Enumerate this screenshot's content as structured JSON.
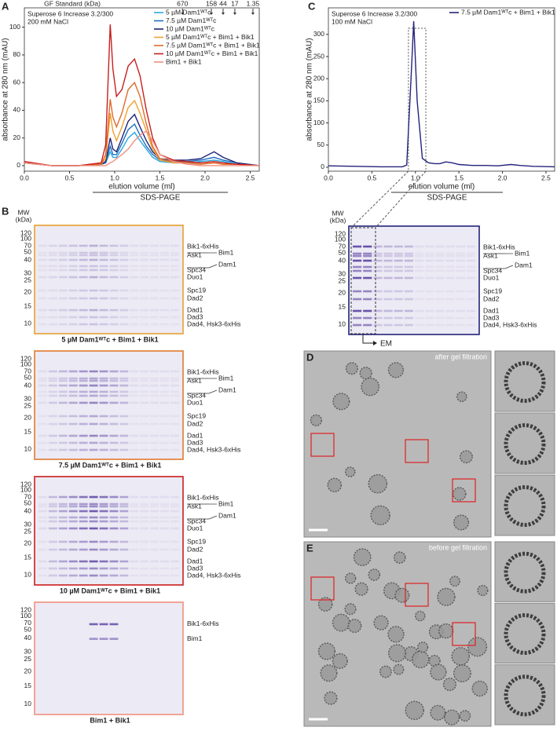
{
  "panel_letters": [
    "A",
    "B",
    "C",
    "D",
    "E"
  ],
  "chart_data": [
    {
      "type": "line",
      "annotations": [
        "Superose 6 Increase 3.2/300",
        "200 mM NaCl"
      ],
      "gf_standard": {
        "title": "GF Standard (kDa)",
        "labels": [
          "670",
          "158",
          "44",
          "17",
          "1.35"
        ],
        "x": [
          1.75,
          2.07,
          2.2,
          2.33,
          2.53
        ]
      },
      "xlabel": "elution volume (ml)",
      "ylabel": "absorbance at 280 nm (mAU)",
      "bracket_label": "SDS-PAGE",
      "xlim": [
        0,
        2.6
      ],
      "ylim": [
        -4,
        114
      ],
      "xticks": [
        {
          "value": 0,
          "label": "0.0"
        },
        0.5,
        {
          "value": 1,
          "label": "1.0"
        },
        1.5,
        {
          "value": 2,
          "label": "2.0"
        },
        2.5
      ],
      "yticks": [
        0,
        20,
        40,
        60,
        80,
        100
      ],
      "x": [
        0,
        0.3,
        0.6,
        0.85,
        0.9,
        0.95,
        0.98,
        1.02,
        1.08,
        1.15,
        1.22,
        1.28,
        1.35,
        1.42,
        1.5,
        1.65,
        1.8,
        1.95,
        2.1,
        2.2,
        2.35,
        2.6
      ],
      "series": [
        {
          "name": "5 µM Dam1ᵂᵀc",
          "color": "#29a8e0",
          "values": [
            2,
            0,
            0,
            1,
            2,
            10,
            6,
            6,
            12,
            20,
            24,
            18,
            12,
            6,
            3,
            2,
            2,
            3,
            4,
            3,
            1,
            0
          ]
        },
        {
          "name": "7.5 µM Dam1ᵂᵀc",
          "color": "#1f6fc0",
          "values": [
            2,
            0,
            0,
            1,
            2,
            14,
            8,
            8,
            16,
            26,
            30,
            22,
            14,
            8,
            4,
            3,
            3,
            4,
            6,
            4,
            2,
            0
          ]
        },
        {
          "name": "10 µM Dam1ᵂᵀc",
          "color": "#1b237a",
          "values": [
            2,
            0,
            0,
            1,
            3,
            20,
            12,
            10,
            20,
            32,
            37,
            28,
            18,
            10,
            5,
            4,
            4,
            5,
            10,
            6,
            2,
            0
          ]
        },
        {
          "name": "5 µM Dam1ᵂᵀc + Bim1 + Bik1",
          "color": "#f0a030",
          "values": [
            2,
            0,
            0,
            1,
            5,
            38,
            25,
            18,
            28,
            42,
            47,
            38,
            25,
            12,
            4,
            2,
            2,
            1,
            2,
            1,
            1,
            0
          ]
        },
        {
          "name": "7.5 µM Dam1ᵂᵀc + Bim1 + Bik1",
          "color": "#e06a2a",
          "values": [
            2,
            0,
            0,
            1,
            8,
            48,
            35,
            28,
            38,
            55,
            60,
            50,
            30,
            14,
            5,
            3,
            2,
            1,
            2,
            1,
            1,
            0
          ]
        },
        {
          "name": "10 µM Dam1ᵂᵀc + Bim1 + Bik1",
          "color": "#c81e1e",
          "values": [
            3,
            0,
            0,
            2,
            15,
            102,
            70,
            50,
            55,
            72,
            77,
            65,
            40,
            20,
            8,
            4,
            3,
            2,
            3,
            2,
            1,
            0
          ]
        },
        {
          "name": "Bim1 + Bik1",
          "color": "#f09080",
          "values": [
            2,
            0,
            0,
            0,
            0,
            2,
            3,
            5,
            8,
            12,
            18,
            22,
            25,
            18,
            8,
            3,
            1,
            0,
            0,
            0,
            0,
            0
          ]
        }
      ],
      "legend": "upper right"
    },
    {
      "type": "line",
      "annotations": [
        "Superose 6 Increase 3.2/300",
        "100 mM NaCl"
      ],
      "xlabel": "elution volume (ml)",
      "ylabel": "absorbance at 280 nm (mAU)",
      "bracket_label": "SDS-PAGE",
      "xlim": [
        0,
        2.6
      ],
      "ylim": [
        -9,
        360
      ],
      "xticks": [
        {
          "value": 0,
          "label": "0.0"
        },
        0.5,
        {
          "value": 1,
          "label": "1.0"
        },
        1.5,
        {
          "value": 2,
          "label": "2.0"
        },
        2.5
      ],
      "yticks": [
        0,
        50,
        100,
        150,
        200,
        250,
        300
      ],
      "highlight_x": [
        0.92,
        1.12
      ],
      "x": [
        0,
        0.3,
        0.6,
        0.85,
        0.9,
        0.95,
        0.98,
        1.02,
        1.08,
        1.15,
        1.22,
        1.28,
        1.35,
        1.42,
        1.5,
        1.65,
        1.8,
        1.95,
        2.1,
        2.2,
        2.35,
        2.6
      ],
      "series": [
        {
          "name": "7.5 µM Dam1ᵂᵀc + Bim1 + Bik1",
          "color": "#23237a",
          "values": [
            3,
            2,
            1,
            1,
            5,
            200,
            330,
            150,
            20,
            10,
            8,
            8,
            12,
            10,
            6,
            4,
            4,
            3,
            6,
            4,
            2,
            1
          ]
        }
      ],
      "legend": "upper right"
    }
  ],
  "gels": [
    {
      "mw_title": [
        "MW",
        "(kDa)"
      ],
      "markers": [
        120,
        100,
        70,
        50,
        40,
        30,
        25,
        20,
        15,
        10
      ],
      "bands": [
        "Bik1-6xHis",
        "Ask1",
        "Spc34",
        "Duo1",
        "Spc19",
        "Dad2",
        "Dad1",
        "Dad3",
        "Dad4, Hsk3-6xHis"
      ],
      "bracket_bands": [
        "Bim1",
        "Dam1"
      ],
      "caption": "5 µM Dam1ᵂᵀc + Bim1 + Bik1",
      "border": "#e8a030"
    },
    {
      "markers": [
        120,
        100,
        70,
        50,
        40,
        30,
        25,
        20,
        15,
        10
      ],
      "bands": [
        "Bik1-6xHis",
        "Ask1",
        "Spc34",
        "Duo1",
        "Spc19",
        "Dad2",
        "Dad1",
        "Dad3",
        "Dad4, Hsk3-6xHis"
      ],
      "bracket_bands": [
        "Bim1",
        "Dam1"
      ],
      "caption": "7.5 µM Dam1ᵂᵀc + Bim1 + Bik1",
      "border": "#e07a30"
    },
    {
      "markers": [
        120,
        100,
        70,
        50,
        40,
        30,
        25,
        20,
        15,
        10
      ],
      "bands": [
        "Bik1-6xHis",
        "Ask1",
        "Spc34",
        "Duo1",
        "Spc19",
        "Dad2",
        "Dad1",
        "Dad3",
        "Dad4, Hsk3-6xHis"
      ],
      "bracket_bands": [
        "Bim1",
        "Dam1"
      ],
      "caption": "10 µM Dam1ᵂᵀc + Bim1 + Bik1",
      "border": "#c81e1e"
    },
    {
      "markers": [
        120,
        100,
        70,
        50,
        40,
        30,
        25,
        20,
        15,
        10
      ],
      "bands": [
        "Bik1-6xHis",
        "Bim1"
      ],
      "caption": "Bim1 + Bik1",
      "border": "#f09080"
    }
  ],
  "gel_c": {
    "mw_title": [
      "MW",
      "(kDa)"
    ],
    "markers": [
      120,
      100,
      70,
      50,
      40,
      30,
      25,
      20,
      15,
      10
    ],
    "bands": [
      "Bik1-6xHis",
      "Ask1",
      "Spc34",
      "Duo1",
      "Spc19",
      "Dad2",
      "Dad1",
      "Dad3",
      "Dad4, Hsk3-6xHis"
    ],
    "bracket_bands": [
      "Bim1",
      "Dam1"
    ],
    "arrow_label": "EM",
    "border": "#23237a"
  },
  "em": {
    "after_label": "after gel filtration",
    "before_label": "before gel filtration"
  }
}
